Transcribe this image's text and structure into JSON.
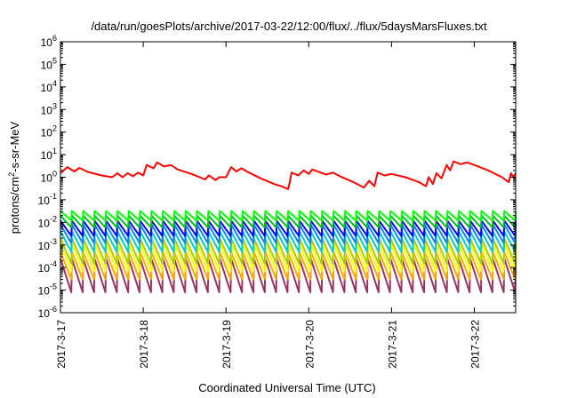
{
  "chart_data": {
    "type": "line",
    "title": "/data/run/goesPlots/archive/2017-03-22/12:00/flux/../flux/5daysMarsFluxes.txt",
    "xlabel": "Coordinated Universal Time (UTC)",
    "ylabel": {
      "prefix": "protons/cm",
      "sup": "2",
      "suffix": "-s-sr-MeV"
    },
    "yscale": "log",
    "ylim": [
      1e-06,
      1000000.0
    ],
    "y_ticks": [
      {
        "value": 1e-06,
        "base": "10",
        "exp": "-6"
      },
      {
        "value": 1e-05,
        "base": "10",
        "exp": "-5"
      },
      {
        "value": 0.0001,
        "base": "10",
        "exp": "-4"
      },
      {
        "value": 0.001,
        "base": "10",
        "exp": "-3"
      },
      {
        "value": 0.01,
        "base": "10",
        "exp": "-2"
      },
      {
        "value": 0.1,
        "base": "10",
        "exp": "-1"
      },
      {
        "value": 1,
        "base": "10",
        "exp": "0"
      },
      {
        "value": 10,
        "base": "10",
        "exp": "1"
      },
      {
        "value": 100,
        "base": "10",
        "exp": "2"
      },
      {
        "value": 1000,
        "base": "10",
        "exp": "3"
      },
      {
        "value": 10000,
        "base": "10",
        "exp": "4"
      },
      {
        "value": 100000,
        "base": "10",
        "exp": "5"
      },
      {
        "value": 1000000,
        "base": "10",
        "exp": "6"
      }
    ],
    "xlim": [
      "2017-03-17",
      "2017-03-22T12:00"
    ],
    "x_ticks": [
      {
        "value": "2017-03-17",
        "label": "2017-3-17"
      },
      {
        "value": "2017-03-18",
        "label": "2017-3-18"
      },
      {
        "value": "2017-03-19",
        "label": "2017-3-19"
      },
      {
        "value": "2017-03-20",
        "label": "2017-3-20"
      },
      {
        "value": "2017-03-21",
        "label": "2017-3-21"
      },
      {
        "value": "2017-03-22",
        "label": "2017-3-22"
      }
    ],
    "grid": false,
    "legend": "none",
    "series": [
      {
        "color": "#ff0000",
        "points": [
          [
            "2017-03-17T00:00",
            1.5
          ],
          [
            "2017-03-17T02:00",
            2.8
          ],
          [
            "2017-03-17T04:00",
            1.8
          ],
          [
            "2017-03-17T05:30",
            2.6
          ],
          [
            "2017-03-17T08:00",
            1.7
          ],
          [
            "2017-03-17T12:00",
            1.2
          ],
          [
            "2017-03-17T15:00",
            1.0
          ],
          [
            "2017-03-17T16:30",
            1.5
          ],
          [
            "2017-03-17T18:00",
            1.0
          ],
          [
            "2017-03-17T19:30",
            1.5
          ],
          [
            "2017-03-17T21:00",
            1.1
          ],
          [
            "2017-03-17T22:30",
            1.6
          ],
          [
            "2017-03-18T00:00",
            1.2
          ],
          [
            "2017-03-18T01:00",
            3.5
          ],
          [
            "2017-03-18T03:00",
            2.5
          ],
          [
            "2017-03-18T04:00",
            4.5
          ],
          [
            "2017-03-18T06:00",
            3.0
          ],
          [
            "2017-03-18T08:00",
            3.5
          ],
          [
            "2017-03-18T10:00",
            2.2
          ],
          [
            "2017-03-18T14:00",
            1.4
          ],
          [
            "2017-03-18T18:00",
            0.8
          ],
          [
            "2017-03-18T19:00",
            1.2
          ],
          [
            "2017-03-18T21:00",
            0.75
          ],
          [
            "2017-03-18T22:00",
            1.0
          ],
          [
            "2017-03-19T00:00",
            1.0
          ],
          [
            "2017-03-19T01:30",
            2.8
          ],
          [
            "2017-03-19T03:00",
            1.8
          ],
          [
            "2017-03-19T04:30",
            2.5
          ],
          [
            "2017-03-19T06:00",
            1.8
          ],
          [
            "2017-03-19T10:00",
            0.9
          ],
          [
            "2017-03-19T14:00",
            0.5
          ],
          [
            "2017-03-19T16:00",
            0.4
          ],
          [
            "2017-03-19T18:00",
            0.3
          ],
          [
            "2017-03-19T18:30",
            0.6
          ],
          [
            "2017-03-19T19:00",
            1.6
          ],
          [
            "2017-03-19T21:00",
            1.2
          ],
          [
            "2017-03-19T22:30",
            2.0
          ],
          [
            "2017-03-20T00:00",
            1.4
          ],
          [
            "2017-03-20T01:00",
            2.2
          ],
          [
            "2017-03-20T03:00",
            1.7
          ],
          [
            "2017-03-20T05:00",
            1.3
          ],
          [
            "2017-03-20T07:00",
            1.6
          ],
          [
            "2017-03-20T09:00",
            1.1
          ],
          [
            "2017-03-20T13:00",
            0.6
          ],
          [
            "2017-03-20T16:00",
            0.35
          ],
          [
            "2017-03-20T17:30",
            0.7
          ],
          [
            "2017-03-20T19:00",
            0.4
          ],
          [
            "2017-03-20T20:00",
            1.6
          ],
          [
            "2017-03-20T22:00",
            1.2
          ],
          [
            "2017-03-21T00:00",
            1.4
          ],
          [
            "2017-03-21T04:00",
            1.0
          ],
          [
            "2017-03-21T08:00",
            0.6
          ],
          [
            "2017-03-21T10:00",
            0.4
          ],
          [
            "2017-03-21T10:45",
            1.0
          ],
          [
            "2017-03-21T12:00",
            0.5
          ],
          [
            "2017-03-21T13:00",
            1.5
          ],
          [
            "2017-03-21T14:30",
            0.9
          ],
          [
            "2017-03-21T16:00",
            3.5
          ],
          [
            "2017-03-21T17:00",
            2.0
          ],
          [
            "2017-03-21T18:00",
            5.0
          ],
          [
            "2017-03-21T20:00",
            3.8
          ],
          [
            "2017-03-21T22:00",
            4.5
          ],
          [
            "2017-03-22T00:00",
            3.5
          ],
          [
            "2017-03-22T04:00",
            2.0
          ],
          [
            "2017-03-22T08:00",
            1.0
          ],
          [
            "2017-03-22T10:00",
            0.6
          ],
          [
            "2017-03-22T10:40",
            1.5
          ],
          [
            "2017-03-22T11:20",
            1.0
          ],
          [
            "2017-03-22T12:00",
            1.5
          ]
        ]
      },
      {
        "color": "#00ff00",
        "cycle_hours": 3.3,
        "high": 0.032,
        "low": 0.012
      },
      {
        "color": "#00bb22",
        "cycle_hours": 3.3,
        "high": 0.02,
        "low": 0.006
      },
      {
        "color": "#0000ff",
        "cycle_hours": 3.3,
        "high": 0.012,
        "low": 0.0025
      },
      {
        "color": "#0088ff",
        "cycle_hours": 3.3,
        "high": 0.008,
        "low": 0.0012
      },
      {
        "color": "#00cccc",
        "cycle_hours": 3.3,
        "high": 0.004,
        "low": 0.0005
      },
      {
        "color": "#aacc00",
        "cycle_hours": 3.3,
        "high": 0.002,
        "low": 0.00015
      },
      {
        "color": "#ffff00",
        "cycle_hours": 3.3,
        "high": 0.0012,
        "low": 7e-05
      },
      {
        "color": "#ffaa00",
        "cycle_hours": 3.3,
        "high": 0.0005,
        "low": 3e-05
      },
      {
        "color": "#993366",
        "cycle_hours": 3.3,
        "high": 0.00025,
        "low": 8e-06
      }
    ]
  }
}
